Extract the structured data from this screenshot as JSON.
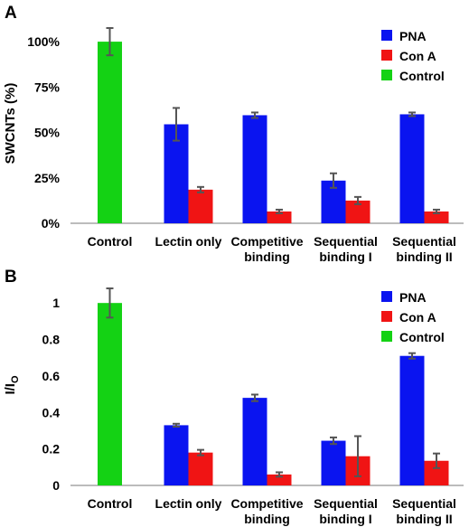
{
  "colors": {
    "PNA": "#0a14f0",
    "Con A": "#f01414",
    "Control": "#14d214",
    "error_bar": "#555555",
    "axis": "#a6a6a6"
  },
  "chart_data": [
    {
      "panel": "A",
      "type": "bar",
      "ylabel": "SWCNTs (%)",
      "ylim": [
        0,
        110
      ],
      "yticks": [
        0,
        25,
        50,
        75,
        100
      ],
      "ytick_labels": [
        "0%",
        "25%",
        "50%",
        "75%",
        "100%"
      ],
      "legend": [
        "PNA",
        "Con A",
        "Control"
      ],
      "legend_position": "top-right",
      "categories": [
        [
          "Control"
        ],
        [
          "Lectin only"
        ],
        [
          "Competitive",
          "binding"
        ],
        [
          "Sequential",
          "binding I"
        ],
        [
          "Sequential",
          "binding II"
        ]
      ],
      "series": [
        {
          "name": "PNA",
          "values": [
            null,
            54.5,
            59.5,
            23.5,
            60
          ],
          "errors": [
            null,
            9,
            1.5,
            4,
            1
          ]
        },
        {
          "name": "Con A",
          "values": [
            null,
            18.5,
            6.5,
            12.5,
            6.5
          ],
          "errors": [
            null,
            1.5,
            1,
            2,
            1
          ]
        },
        {
          "name": "Control",
          "values": [
            100,
            null,
            null,
            null,
            null
          ],
          "errors": [
            7.5,
            null,
            null,
            null,
            null
          ]
        }
      ]
    },
    {
      "panel": "B",
      "type": "bar",
      "ylabel": "I/I",
      "ylabel_subscript": "O",
      "ylim": [
        0,
        1.1
      ],
      "yticks": [
        0,
        0.2,
        0.4,
        0.6,
        0.8,
        1
      ],
      "ytick_labels": [
        "0",
        "0.2",
        "0.4",
        "0.6",
        "0.8",
        "1"
      ],
      "legend": [
        "PNA",
        "Con A",
        "Control"
      ],
      "legend_position": "top-right",
      "categories": [
        [
          "Control"
        ],
        [
          "Lectin only"
        ],
        [
          "Competitive",
          "binding"
        ],
        [
          "Sequential",
          "binding I"
        ],
        [
          "Sequential",
          "binding II"
        ]
      ],
      "series": [
        {
          "name": "PNA",
          "values": [
            null,
            0.33,
            0.48,
            0.245,
            0.71
          ],
          "errors": [
            null,
            0.008,
            0.018,
            0.018,
            0.015
          ]
        },
        {
          "name": "Con A",
          "values": [
            null,
            0.18,
            0.06,
            0.16,
            0.135
          ],
          "errors": [
            null,
            0.015,
            0.012,
            0.11,
            0.04
          ]
        },
        {
          "name": "Control",
          "values": [
            1,
            null,
            null,
            null,
            null
          ],
          "errors": [
            0.08,
            null,
            null,
            null,
            null
          ]
        }
      ]
    }
  ]
}
